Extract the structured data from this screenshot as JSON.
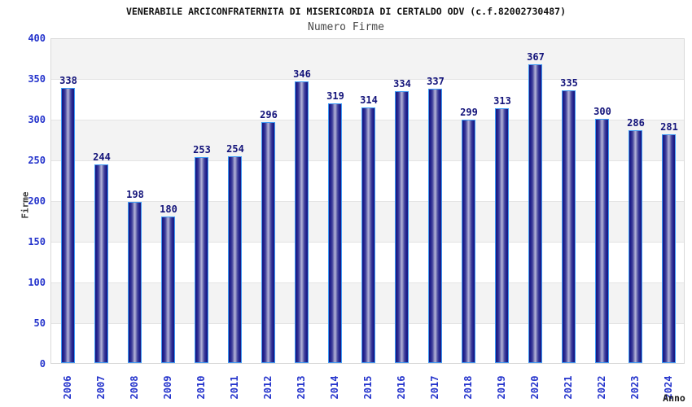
{
  "title": "VENERABILE ARCICONFRATERNITA DI MISERICORDIA DI CERTALDO ODV (c.f.82002730487)",
  "subtitle": "Numero Firme",
  "chart_data": {
    "type": "bar",
    "categories": [
      "2006",
      "2007",
      "2008",
      "2009",
      "2010",
      "2011",
      "2012",
      "2013",
      "2014",
      "2015",
      "2016",
      "2017",
      "2018",
      "2019",
      "2020",
      "2021",
      "2022",
      "2023",
      "2024"
    ],
    "values": [
      338,
      244,
      198,
      180,
      253,
      254,
      296,
      346,
      319,
      314,
      334,
      337,
      299,
      313,
      367,
      335,
      300,
      286,
      281
    ],
    "title": "VENERABILE ARCICONFRATERNITA DI MISERICORDIA DI CERTALDO ODV (c.f.82002730487)",
    "subtitle": "Numero Firme",
    "xlabel": "Anno",
    "ylabel": "Firme",
    "ylim": [
      0,
      400
    ],
    "yticks": [
      0,
      50,
      100,
      150,
      200,
      250,
      300,
      350,
      400
    ],
    "grid": "alternating horizontal bands every 50 units",
    "legend": "none",
    "value_labels_shown": true,
    "x_tick_rotation_deg": 90
  },
  "colors": {
    "tick_label": "#2534cc",
    "value_label": "#13137a",
    "bar_border": "#3f9bf5",
    "bar_edge": "#17177e",
    "bar_center": "#b4b4da",
    "band_gray": "#f3f3f3",
    "band_white": "#ffffff",
    "gridline": "#e4e4e4",
    "plot_border": "#d9d9d9",
    "title": "#111111",
    "subtitle": "#4a4a4a"
  }
}
